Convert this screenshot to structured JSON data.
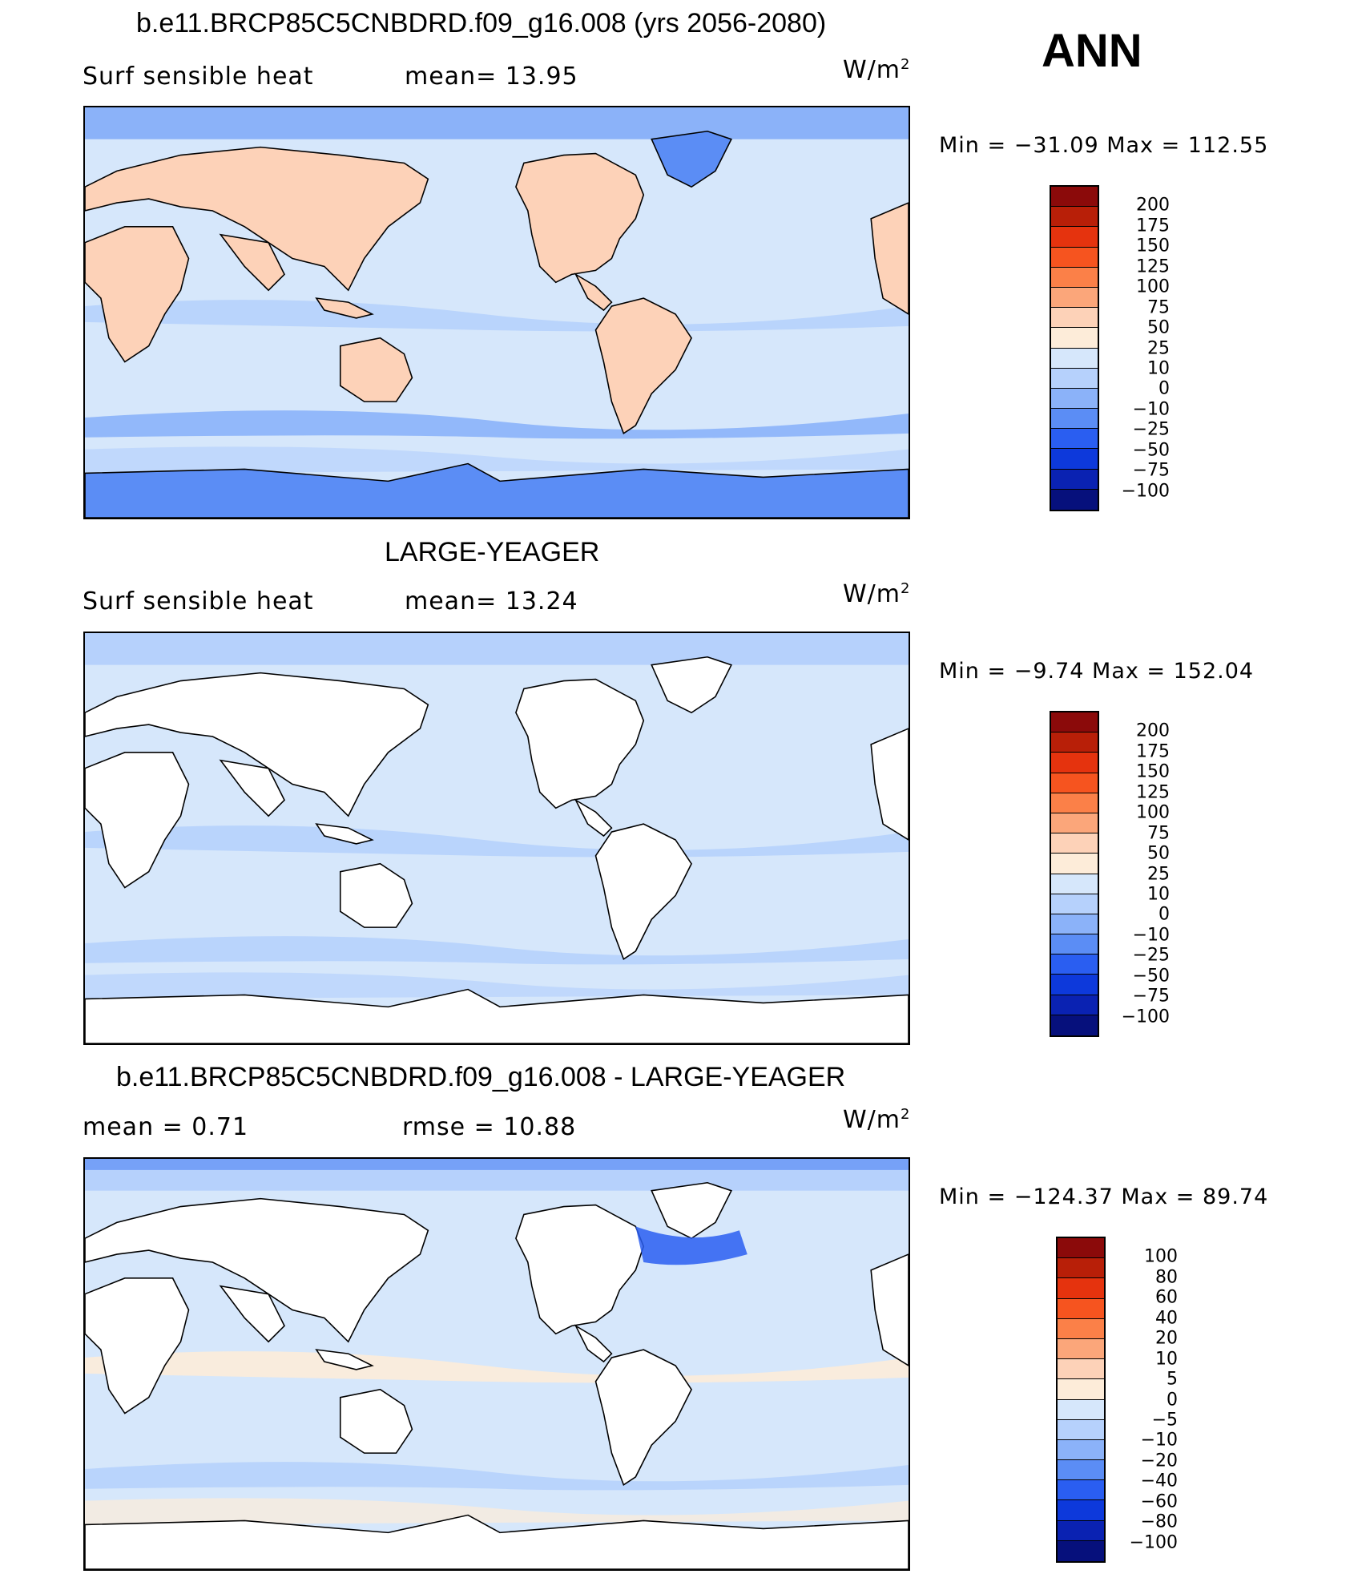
{
  "season": "ANN",
  "panels": [
    {
      "id": "model",
      "title": "b.e11.BRCP85C5CNBDRD.f09_g16.008 (yrs 2056-2080)",
      "left_label": "Surf  sensible  heat",
      "mid_label": "mean=   13.95",
      "units": "W/m",
      "units_sup": "2",
      "minmax": "Min  =  −31.09  Max  =  112.55",
      "colorbar": {
        "labels": [
          "200",
          "175",
          "150",
          "125",
          "100",
          "75",
          "50",
          "25",
          "10",
          "0",
          "−10",
          "−25",
          "−50",
          "−75",
          "−100"
        ],
        "colors": [
          "#8b0a0a",
          "#b81f08",
          "#e5330e",
          "#f6541f",
          "#fb8048",
          "#fba67a",
          "#fdd2b8",
          "#fdecd9",
          "#d6e7fb",
          "#b6d1fc",
          "#8bb2f9",
          "#5b8df5",
          "#2a5ef1",
          "#0d39db",
          "#0a22b2",
          "#06107c"
        ]
      },
      "map_style": "model"
    },
    {
      "id": "obs",
      "title": "LARGE-YEAGER",
      "left_label": "Surf  sensible  heat",
      "mid_label": "mean=   13.24",
      "units": "W/m",
      "units_sup": "2",
      "minmax": "Min  =    −9.74  Max  =  152.04",
      "colorbar": {
        "labels": [
          "200",
          "175",
          "150",
          "125",
          "100",
          "75",
          "50",
          "25",
          "10",
          "0",
          "−10",
          "−25",
          "−50",
          "−75",
          "−100"
        ],
        "colors": [
          "#8b0a0a",
          "#b81f08",
          "#e5330e",
          "#f6541f",
          "#fb8048",
          "#fba67a",
          "#fdd2b8",
          "#fdecd9",
          "#d6e7fb",
          "#b6d1fc",
          "#8bb2f9",
          "#5b8df5",
          "#2a5ef1",
          "#0d39db",
          "#0a22b2",
          "#06107c"
        ]
      },
      "map_style": "obs"
    },
    {
      "id": "diff",
      "title": "b.e11.BRCP85C5CNBDRD.f09_g16.008 - LARGE-YEAGER",
      "left_label": "mean  =      0.71",
      "mid_label": "rmse  =     10.88",
      "units": "W/m",
      "units_sup": "2",
      "minmax": "Min  =  −124.37  Max  =    89.74",
      "colorbar": {
        "labels": [
          "100",
          "80",
          "60",
          "40",
          "20",
          "10",
          "5",
          "0",
          "−5",
          "−10",
          "−20",
          "−40",
          "−60",
          "−80",
          "−100"
        ],
        "colors": [
          "#8b0a0a",
          "#b81f08",
          "#e5330e",
          "#f6541f",
          "#fb8048",
          "#fba67a",
          "#fdd2b8",
          "#fdecd9",
          "#d6e7fb",
          "#b6d1fc",
          "#8bb2f9",
          "#5b8df5",
          "#2a5ef1",
          "#0d39db",
          "#0a22b2",
          "#06107c"
        ]
      },
      "map_style": "diff"
    }
  ]
}
